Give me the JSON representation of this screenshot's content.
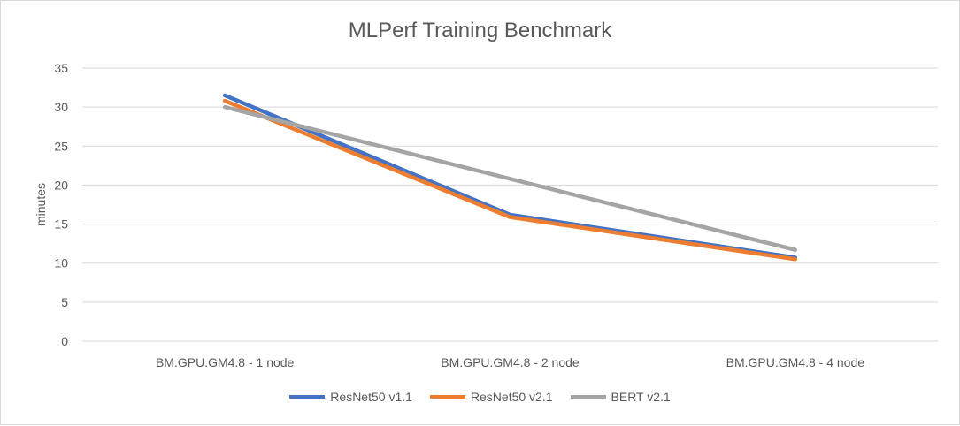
{
  "chart_data": {
    "type": "line",
    "title": "MLPerf Training Benchmark",
    "xlabel": "",
    "ylabel": "minutes",
    "ylim": [
      0,
      35
    ],
    "yticks": [
      0,
      5,
      10,
      15,
      20,
      25,
      30,
      35
    ],
    "grid": true,
    "legend_position": "bottom",
    "categories": [
      "BM.GPU.GM4.8 - 1 node",
      "BM.GPU.GM4.8 - 2 node",
      "BM.GPU.GM4.8 - 4 node"
    ],
    "series": [
      {
        "name": "ResNet50 v1.1",
        "color": "#4472c4",
        "values": [
          31.5,
          16.2,
          10.7
        ]
      },
      {
        "name": "ResNet50 v2.1",
        "color": "#ed7d31",
        "values": [
          30.8,
          15.9,
          10.5
        ]
      },
      {
        "name": "BERT v2.1",
        "color": "#a5a5a5",
        "values": [
          30.0,
          20.8,
          11.7
        ]
      }
    ]
  }
}
